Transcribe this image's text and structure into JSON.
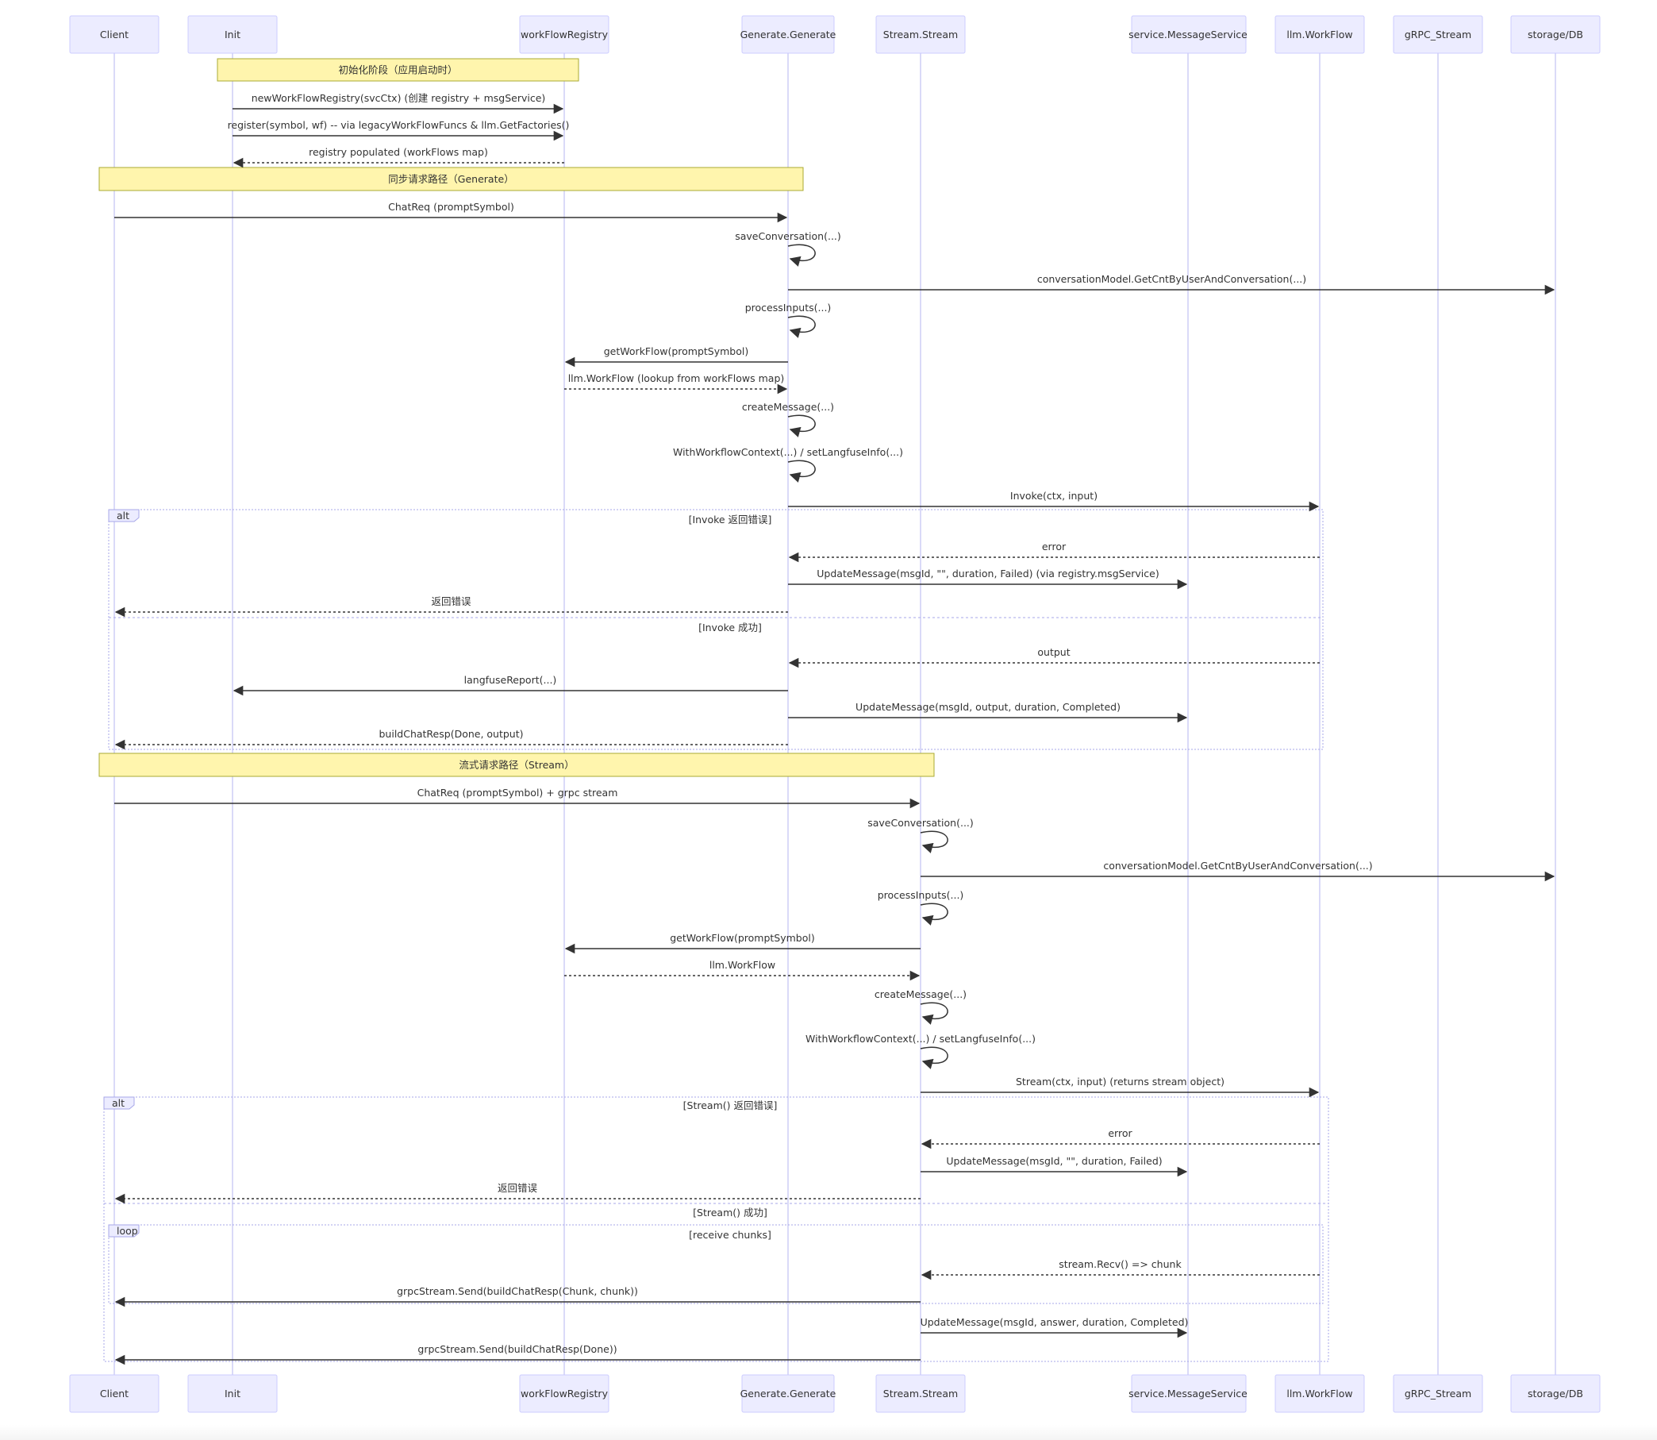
{
  "colors": {
    "participant_fill": "#ececff",
    "participant_stroke": "#ccccff",
    "lifeline": "#c7c7f4",
    "note_fill": "#fff5ad",
    "note_stroke": "#aaaa33",
    "arrow": "#333333",
    "frame_stroke": "#a7a7e8",
    "text": "#333333"
  },
  "participants": [
    {
      "id": "client",
      "label": "Client"
    },
    {
      "id": "init",
      "label": "Init"
    },
    {
      "id": "registry",
      "label": "workFlowRegistry"
    },
    {
      "id": "generate",
      "label": "Generate.Generate"
    },
    {
      "id": "stream",
      "label": "Stream.Stream"
    },
    {
      "id": "msgsvc",
      "label": "service.MessageService"
    },
    {
      "id": "llm",
      "label": "llm.WorkFlow"
    },
    {
      "id": "grpc",
      "label": "gRPC_Stream"
    },
    {
      "id": "db",
      "label": "storage/DB"
    }
  ],
  "notes": [
    {
      "text": "初始化阶段（应用启动时）"
    },
    {
      "text": "同步请求路径（Generate）"
    },
    {
      "text": "流式请求路径（Stream）"
    }
  ],
  "frames": [
    {
      "tag": "alt",
      "sections": [
        "[Invoke 返回错误]",
        "[Invoke 成功]"
      ]
    },
    {
      "tag": "alt",
      "sections": [
        "[Stream() 返回错误]",
        "[Stream() 成功]"
      ]
    },
    {
      "tag": "loop",
      "sections": [
        "[receive chunks]"
      ]
    }
  ],
  "messages": [
    {
      "from": "init",
      "to": "registry",
      "label": "newWorkFlowRegistry(svcCtx) (创建 registry + msgService)",
      "kind": "solid"
    },
    {
      "from": "init",
      "to": "registry",
      "label": "register(symbol, wf) -- via legacyWorkFlowFuncs & llm.GetFactories()",
      "kind": "solid"
    },
    {
      "from": "registry",
      "to": "init",
      "label": "registry populated (workFlows map)",
      "kind": "dotted"
    },
    {
      "from": "client",
      "to": "generate",
      "label": "ChatReq (promptSymbol)",
      "kind": "solid"
    },
    {
      "from": "generate",
      "to": "generate",
      "label": "saveConversation(...)",
      "kind": "self"
    },
    {
      "from": "generate",
      "to": "db",
      "label": "conversationModel.GetCntByUserAndConversation(...)",
      "kind": "solid"
    },
    {
      "from": "generate",
      "to": "generate",
      "label": "processInputs(...)",
      "kind": "self"
    },
    {
      "from": "generate",
      "to": "registry",
      "label": "getWorkFlow(promptSymbol)",
      "kind": "solid"
    },
    {
      "from": "registry",
      "to": "generate",
      "label": "llm.WorkFlow (lookup from workFlows map)",
      "kind": "dotted"
    },
    {
      "from": "generate",
      "to": "generate",
      "label": "createMessage(...)",
      "kind": "self"
    },
    {
      "from": "generate",
      "to": "generate",
      "label": "WithWorkflowContext(...) / setLangfuseInfo(...)",
      "kind": "self"
    },
    {
      "from": "generate",
      "to": "llm",
      "label": "Invoke(ctx, input)",
      "kind": "solid"
    },
    {
      "from": "llm",
      "to": "generate",
      "label": "error",
      "kind": "dotted"
    },
    {
      "from": "generate",
      "to": "msgsvc",
      "label": "UpdateMessage(msgId, \"\", duration, Failed) (via registry.msgService)",
      "kind": "solid"
    },
    {
      "from": "generate",
      "to": "client",
      "label": "返回错误",
      "kind": "dotted"
    },
    {
      "from": "llm",
      "to": "generate",
      "label": "output",
      "kind": "dotted"
    },
    {
      "from": "generate",
      "to": "init",
      "label": "langfuseReport(...)",
      "kind": "solid"
    },
    {
      "from": "generate",
      "to": "msgsvc",
      "label": "UpdateMessage(msgId, output, duration, Completed)",
      "kind": "solid"
    },
    {
      "from": "generate",
      "to": "client",
      "label": "buildChatResp(Done, output)",
      "kind": "dotted"
    },
    {
      "from": "client",
      "to": "stream",
      "label": "ChatReq (promptSymbol) + grpc stream",
      "kind": "solid"
    },
    {
      "from": "stream",
      "to": "stream",
      "label": "saveConversation(...)",
      "kind": "self"
    },
    {
      "from": "stream",
      "to": "db",
      "label": "conversationModel.GetCntByUserAndConversation(...)",
      "kind": "solid"
    },
    {
      "from": "stream",
      "to": "stream",
      "label": "processInputs(...)",
      "kind": "self"
    },
    {
      "from": "stream",
      "to": "registry",
      "label": "getWorkFlow(promptSymbol)",
      "kind": "solid"
    },
    {
      "from": "registry",
      "to": "stream",
      "label": "llm.WorkFlow",
      "kind": "dotted"
    },
    {
      "from": "stream",
      "to": "stream",
      "label": "createMessage(...)",
      "kind": "self"
    },
    {
      "from": "stream",
      "to": "stream",
      "label": "WithWorkflowContext(...) / setLangfuseInfo(...)",
      "kind": "self"
    },
    {
      "from": "stream",
      "to": "llm",
      "label": "Stream(ctx, input) (returns stream object)",
      "kind": "solid"
    },
    {
      "from": "llm",
      "to": "stream",
      "label": "error",
      "kind": "dotted"
    },
    {
      "from": "stream",
      "to": "msgsvc",
      "label": "UpdateMessage(msgId, \"\", duration, Failed)",
      "kind": "solid"
    },
    {
      "from": "stream",
      "to": "client",
      "label": "返回错误",
      "kind": "dotted"
    },
    {
      "from": "llm",
      "to": "stream",
      "label": "stream.Recv() => chunk",
      "kind": "dotted"
    },
    {
      "from": "stream",
      "to": "client",
      "label": "grpcStream.Send(buildChatResp(Chunk, chunk))",
      "kind": "solid"
    },
    {
      "from": "stream",
      "to": "msgsvc",
      "label": "UpdateMessage(msgId, answer, duration, Completed)",
      "kind": "solid"
    },
    {
      "from": "stream",
      "to": "client",
      "label": "grpcStream.Send(buildChatResp(Done))",
      "kind": "solid"
    }
  ]
}
